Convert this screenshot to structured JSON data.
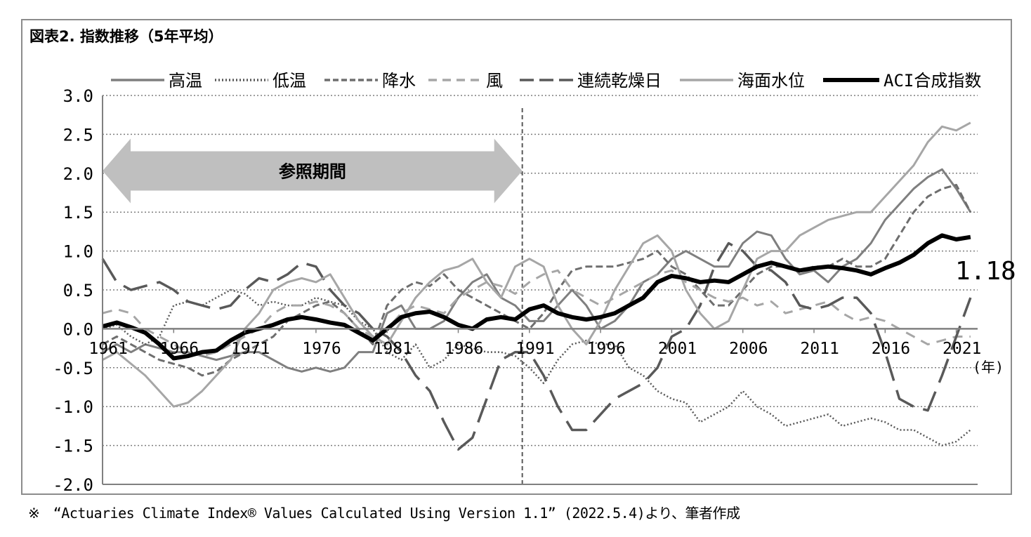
{
  "title": "図表2. 指数推移（5年平均）",
  "note": "※　“Actuaries Climate Index® Values Calculated Using Version 1.1” (2022.5.4)より、筆者作成",
  "chart_data": {
    "type": "line",
    "xunit": "(年)",
    "x_ticks": [
      "1961",
      "1966",
      "1971",
      "1976",
      "1981",
      "1986",
      "1991",
      "1996",
      "2001",
      "2006",
      "2011",
      "2016",
      "2021"
    ],
    "y_ticks": [
      "3.0",
      "2.5",
      "2.0",
      "1.5",
      "1.0",
      "0.5",
      "0.0",
      "-0.5",
      "-1.0",
      "-1.5",
      "-2.0"
    ],
    "xlim": [
      1961,
      2022.5
    ],
    "ylim": [
      -2.0,
      3.0
    ],
    "grid": "horizontal-dotted",
    "legend_position": "top",
    "reference_period": {
      "label": "参照期間",
      "start": 1961,
      "end": 1990
    },
    "end_label": "1.18",
    "series": [
      {
        "name": "高温",
        "style": "solid",
        "color": "#7f7f7f",
        "width": 3,
        "x": [
          1961,
          1962,
          1963,
          1964,
          1965,
          1966,
          1967,
          1968,
          1969,
          1970,
          1971,
          1972,
          1973,
          1974,
          1975,
          1976,
          1977,
          1978,
          1979,
          1980,
          1981,
          1982,
          1983,
          1984,
          1985,
          1986,
          1987,
          1988,
          1989,
          1990,
          1991,
          1992,
          1993,
          1994,
          1995,
          1996,
          1997,
          1998,
          1999,
          2000,
          2001,
          2002,
          2003,
          2004,
          2005,
          2006,
          2007,
          2008,
          2009,
          2010,
          2011,
          2012,
          2013,
          2014,
          2015,
          2016,
          2017,
          2018,
          2019,
          2020,
          2021,
          2022
        ],
        "values": [
          -0.3,
          -0.2,
          -0.3,
          -0.2,
          -0.25,
          -0.3,
          -0.3,
          -0.35,
          -0.4,
          -0.35,
          -0.3,
          -0.3,
          -0.4,
          -0.5,
          -0.55,
          -0.5,
          -0.55,
          -0.5,
          -0.3,
          -0.3,
          0.2,
          0.3,
          0.0,
          0.0,
          0.1,
          0.4,
          0.6,
          0.7,
          0.4,
          0.3,
          0.1,
          0.1,
          0.3,
          0.5,
          0.3,
          0.0,
          0.1,
          0.3,
          0.6,
          0.7,
          0.9,
          1.0,
          0.9,
          0.8,
          0.8,
          1.1,
          1.25,
          1.2,
          0.9,
          0.7,
          0.75,
          0.6,
          0.8,
          0.9,
          1.1,
          1.4,
          1.6,
          1.8,
          1.95,
          2.05,
          1.8,
          1.5
        ]
      },
      {
        "name": "低温",
        "style": "dotted",
        "color": "#595959",
        "width": 2.5,
        "x": [
          1961,
          1962,
          1963,
          1964,
          1965,
          1966,
          1967,
          1968,
          1969,
          1970,
          1971,
          1972,
          1973,
          1974,
          1975,
          1976,
          1977,
          1978,
          1979,
          1980,
          1981,
          1982,
          1983,
          1984,
          1985,
          1986,
          1987,
          1988,
          1989,
          1990,
          1991,
          1992,
          1993,
          1994,
          1995,
          1996,
          1997,
          1998,
          1999,
          2000,
          2001,
          2002,
          2003,
          2004,
          2005,
          2006,
          2007,
          2008,
          2009,
          2010,
          2011,
          2012,
          2013,
          2014,
          2015,
          2016,
          2017,
          2018,
          2019,
          2020,
          2021,
          2022
        ],
        "values": [
          0.0,
          0.05,
          -0.1,
          -0.2,
          -0.1,
          0.3,
          0.35,
          0.3,
          0.4,
          0.5,
          0.45,
          0.3,
          0.35,
          0.3,
          0.3,
          0.4,
          0.35,
          0.3,
          0.1,
          0.0,
          -0.3,
          -0.4,
          -0.2,
          -0.5,
          -0.4,
          -0.2,
          -0.25,
          -0.3,
          -0.3,
          -0.35,
          -0.5,
          -0.7,
          -0.4,
          -0.2,
          -0.15,
          -0.2,
          -0.2,
          -0.5,
          -0.6,
          -0.8,
          -0.9,
          -0.95,
          -1.2,
          -1.1,
          -1.0,
          -0.8,
          -1.0,
          -1.1,
          -1.25,
          -1.2,
          -1.15,
          -1.1,
          -1.25,
          -1.2,
          -1.15,
          -1.2,
          -1.3,
          -1.3,
          -1.4,
          -1.5,
          -1.45,
          -1.3
        ]
      },
      {
        "name": "降水",
        "style": "dashed",
        "color": "#6e6e6e",
        "width": 3,
        "x": [
          1961,
          1962,
          1963,
          1964,
          1965,
          1966,
          1967,
          1968,
          1969,
          1970,
          1971,
          1972,
          1973,
          1974,
          1975,
          1976,
          1977,
          1978,
          1979,
          1980,
          1981,
          1982,
          1983,
          1984,
          1985,
          1986,
          1987,
          1988,
          1989,
          1990,
          1991,
          1992,
          1993,
          1994,
          1995,
          1996,
          1997,
          1998,
          1999,
          2000,
          2001,
          2002,
          2003,
          2004,
          2005,
          2006,
          2007,
          2008,
          2009,
          2010,
          2011,
          2012,
          2013,
          2014,
          2015,
          2016,
          2017,
          2018,
          2019,
          2020,
          2021,
          2022
        ],
        "values": [
          -0.2,
          -0.1,
          -0.2,
          -0.3,
          -0.4,
          -0.45,
          -0.5,
          -0.6,
          -0.55,
          -0.4,
          -0.3,
          -0.2,
          -0.1,
          0.1,
          0.2,
          0.3,
          0.35,
          0.2,
          0.0,
          -0.2,
          0.3,
          0.5,
          0.6,
          0.55,
          0.7,
          0.5,
          0.4,
          0.3,
          0.2,
          0.1,
          0.0,
          0.2,
          0.5,
          0.75,
          0.8,
          0.8,
          0.8,
          0.85,
          0.9,
          1.0,
          0.8,
          0.7,
          0.5,
          0.3,
          0.3,
          0.5,
          0.7,
          0.8,
          0.8,
          0.75,
          0.8,
          0.8,
          0.9,
          0.8,
          0.8,
          0.9,
          1.2,
          1.5,
          1.7,
          1.8,
          1.85,
          1.5
        ]
      },
      {
        "name": "風",
        "style": "dashed-light",
        "color": "#a6a6a6",
        "width": 3,
        "x": [
          1961,
          1962,
          1963,
          1964,
          1965,
          1966,
          1967,
          1968,
          1969,
          1970,
          1971,
          1972,
          1973,
          1974,
          1975,
          1976,
          1977,
          1978,
          1979,
          1980,
          1981,
          1982,
          1983,
          1984,
          1985,
          1986,
          1987,
          1988,
          1989,
          1990,
          1991,
          1992,
          1993,
          1994,
          1995,
          1996,
          1997,
          1998,
          1999,
          2000,
          2001,
          2002,
          2003,
          2004,
          2005,
          2006,
          2007,
          2008,
          2009,
          2010,
          2011,
          2012,
          2013,
          2014,
          2015,
          2016,
          2017,
          2018,
          2019,
          2020,
          2021,
          2022
        ],
        "values": [
          0.2,
          0.25,
          0.2,
          0.0,
          -0.1,
          -0.2,
          -0.3,
          -0.35,
          -0.3,
          -0.2,
          -0.1,
          0.0,
          0.2,
          0.3,
          0.3,
          0.35,
          0.3,
          0.2,
          0.0,
          -0.1,
          0.0,
          0.2,
          0.3,
          0.25,
          0.2,
          0.4,
          0.5,
          0.6,
          0.55,
          0.45,
          0.6,
          0.7,
          0.75,
          0.5,
          0.4,
          0.3,
          0.4,
          0.5,
          0.6,
          0.7,
          0.75,
          0.6,
          0.5,
          0.4,
          0.35,
          0.4,
          0.3,
          0.35,
          0.2,
          0.25,
          0.3,
          0.35,
          0.2,
          0.1,
          0.15,
          0.1,
          0.0,
          -0.1,
          -0.2,
          -0.15,
          -0.1,
          -0.1
        ]
      },
      {
        "name": "連続乾燥日",
        "style": "longdash",
        "color": "#595959",
        "width": 3.5,
        "x": [
          1961,
          1962,
          1963,
          1964,
          1965,
          1966,
          1967,
          1968,
          1969,
          1970,
          1971,
          1972,
          1973,
          1974,
          1975,
          1976,
          1977,
          1978,
          1979,
          1980,
          1981,
          1982,
          1983,
          1984,
          1985,
          1986,
          1987,
          1988,
          1989,
          1990,
          1991,
          1992,
          1993,
          1994,
          1995,
          1996,
          1997,
          1998,
          1999,
          2000,
          2001,
          2002,
          2003,
          2004,
          2005,
          2006,
          2007,
          2008,
          2009,
          2010,
          2011,
          2012,
          2013,
          2014,
          2015,
          2016,
          2017,
          2018,
          2019,
          2020,
          2021,
          2022
        ],
        "values": [
          0.9,
          0.6,
          0.5,
          0.55,
          0.6,
          0.5,
          0.35,
          0.3,
          0.25,
          0.3,
          0.5,
          0.65,
          0.6,
          0.7,
          0.85,
          0.8,
          0.5,
          0.3,
          0.2,
          0.0,
          -0.1,
          -0.3,
          -0.6,
          -0.8,
          -1.2,
          -1.55,
          -1.4,
          -0.9,
          -0.4,
          -0.3,
          -0.3,
          -0.6,
          -1.0,
          -1.3,
          -1.3,
          -1.1,
          -0.9,
          -0.8,
          -0.7,
          -0.5,
          -0.1,
          0.0,
          0.3,
          0.8,
          1.1,
          1.0,
          0.8,
          0.75,
          0.6,
          0.3,
          0.25,
          0.3,
          0.4,
          0.4,
          0.2,
          -0.3,
          -0.9,
          -1.0,
          -1.05,
          -0.6,
          -0.1,
          0.4
        ]
      },
      {
        "name": "海面水位",
        "style": "solid",
        "color": "#a6a6a6",
        "width": 3,
        "x": [
          1961,
          1962,
          1963,
          1964,
          1965,
          1966,
          1967,
          1968,
          1969,
          1970,
          1971,
          1972,
          1973,
          1974,
          1975,
          1976,
          1977,
          1978,
          1979,
          1980,
          1981,
          1982,
          1983,
          1984,
          1985,
          1986,
          1987,
          1988,
          1989,
          1990,
          1991,
          1992,
          1993,
          1994,
          1995,
          1996,
          1997,
          1998,
          1999,
          2000,
          2001,
          2002,
          2003,
          2004,
          2005,
          2006,
          2007,
          2008,
          2009,
          2010,
          2011,
          2012,
          2013,
          2014,
          2015,
          2016,
          2017,
          2018,
          2019,
          2020,
          2021,
          2022
        ],
        "values": [
          -0.4,
          -0.3,
          -0.45,
          -0.6,
          -0.8,
          -1.0,
          -0.95,
          -0.8,
          -0.6,
          -0.4,
          0.0,
          0.2,
          0.5,
          0.6,
          0.65,
          0.6,
          0.7,
          0.4,
          0.1,
          -0.1,
          -0.2,
          0.1,
          0.4,
          0.6,
          0.75,
          0.8,
          0.9,
          0.6,
          0.4,
          0.8,
          0.9,
          0.8,
          0.3,
          0.0,
          -0.2,
          0.1,
          0.5,
          0.8,
          1.1,
          1.2,
          1.0,
          0.5,
          0.2,
          0.0,
          0.1,
          0.5,
          0.9,
          1.0,
          1.0,
          1.2,
          1.3,
          1.4,
          1.45,
          1.5,
          1.5,
          1.7,
          1.9,
          2.1,
          2.4,
          2.6,
          2.55,
          2.65
        ]
      },
      {
        "name": "ACI合成指数",
        "style": "solid-bold",
        "color": "#000000",
        "width": 6,
        "x": [
          1961,
          1962,
          1963,
          1964,
          1965,
          1966,
          1967,
          1968,
          1969,
          1970,
          1971,
          1972,
          1973,
          1974,
          1975,
          1976,
          1977,
          1978,
          1979,
          1980,
          1981,
          1982,
          1983,
          1984,
          1985,
          1986,
          1987,
          1988,
          1989,
          1990,
          1991,
          1992,
          1993,
          1994,
          1995,
          1996,
          1997,
          1998,
          1999,
          2000,
          2001,
          2002,
          2003,
          2004,
          2005,
          2006,
          2007,
          2008,
          2009,
          2010,
          2011,
          2012,
          2013,
          2014,
          2015,
          2016,
          2017,
          2018,
          2019,
          2020,
          2021,
          2022
        ],
        "values": [
          0.03,
          0.08,
          0.02,
          -0.05,
          -0.2,
          -0.38,
          -0.35,
          -0.3,
          -0.28,
          -0.15,
          -0.05,
          0.0,
          0.05,
          0.12,
          0.15,
          0.12,
          0.08,
          0.05,
          -0.05,
          -0.15,
          0.0,
          0.15,
          0.2,
          0.22,
          0.15,
          0.05,
          0.0,
          0.12,
          0.15,
          0.12,
          0.25,
          0.3,
          0.2,
          0.15,
          0.12,
          0.15,
          0.2,
          0.3,
          0.4,
          0.6,
          0.68,
          0.65,
          0.6,
          0.62,
          0.6,
          0.7,
          0.8,
          0.85,
          0.8,
          0.75,
          0.78,
          0.8,
          0.78,
          0.75,
          0.7,
          0.78,
          0.85,
          0.95,
          1.1,
          1.2,
          1.15,
          1.18
        ]
      }
    ]
  }
}
